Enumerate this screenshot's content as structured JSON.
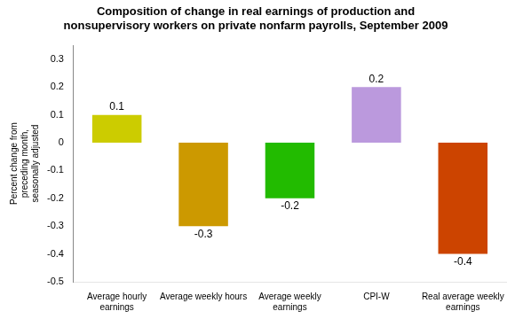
{
  "chart_data": {
    "type": "bar",
    "title": "Composition of change in real earnings of production and\nnonsupervisory workers on private nonfarm payrolls, September 2009",
    "ylabel": "Percent change from\npreceding month,\nseasonally adjusted",
    "categories": [
      "Average hourly\nearnings",
      "Average weekly hours",
      "Average weekly\nearnings",
      "CPI-W",
      "Real average weekly\nearnings"
    ],
    "values": [
      0.1,
      -0.3,
      -0.2,
      0.2,
      -0.4
    ],
    "colors": [
      "#CCCC00",
      "#CC9900",
      "#22BB00",
      "#BB99DD",
      "#CC4400"
    ],
    "ylim": [
      -0.5,
      0.35
    ],
    "yticks": [
      -0.5,
      -0.4,
      -0.3,
      -0.2,
      -0.1,
      0,
      0.1,
      0.2,
      0.3
    ],
    "grid": false,
    "data_labels": true
  }
}
